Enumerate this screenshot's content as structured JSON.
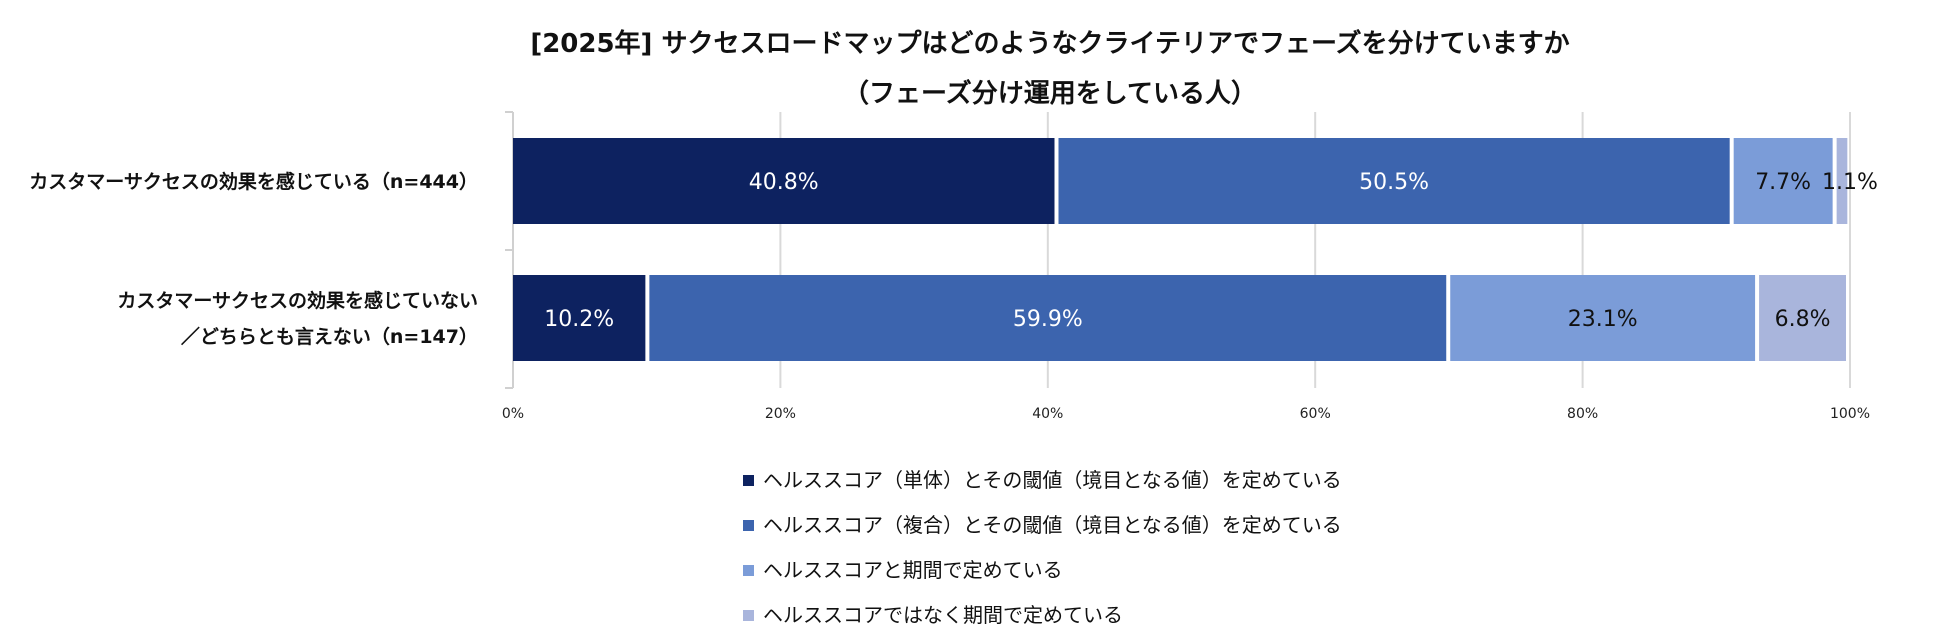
{
  "chart_data": {
    "type": "bar",
    "orientation": "horizontal",
    "stacked": true,
    "title": [
      "[2025年] サクセスロードマップはどのようなクライテリアでフェーズを分けていますか",
      "（フェーズ分け運用をしている人）"
    ],
    "categories": [
      [
        "カスタマーサクセスの効果を感じている（n=444）"
      ],
      [
        "カスタマーサクセスの効果を感じていない",
        "／どちらとも言えない（n=147）"
      ]
    ],
    "series": [
      {
        "name": "ヘルススコア（単体）とその閾値（境目となる値）を定めている",
        "values": [
          40.8,
          10.2
        ],
        "labels": [
          "40.8%",
          "10.2%"
        ],
        "color": "#0d2260",
        "label_color": "#ffffff"
      },
      {
        "name": "ヘルススコア（複合）とその閾値（境目となる値）を定めている",
        "values": [
          50.5,
          59.9
        ],
        "labels": [
          "50.5%",
          "59.9%"
        ],
        "color": "#3c64ae",
        "label_color": "#ffffff"
      },
      {
        "name": "ヘルススコアと期間で定めている",
        "values": [
          7.7,
          23.1
        ],
        "labels": [
          "7.7%",
          "23.1%"
        ],
        "color": "#7b9cd8",
        "label_color": "#111111"
      },
      {
        "name": "ヘルススコアではなく期間で定めている",
        "values": [
          1.1,
          6.8
        ],
        "labels": [
          "1.1%",
          "6.8%"
        ],
        "color": "#a9b5dc",
        "label_color": "#111111"
      }
    ],
    "xlim": [
      0,
      100
    ],
    "xticks": [
      0,
      20,
      40,
      60,
      80,
      100
    ],
    "xtick_labels": [
      "0%",
      "20%",
      "40%",
      "60%",
      "80%",
      "100%"
    ],
    "grid": true,
    "legend": "bottom"
  }
}
